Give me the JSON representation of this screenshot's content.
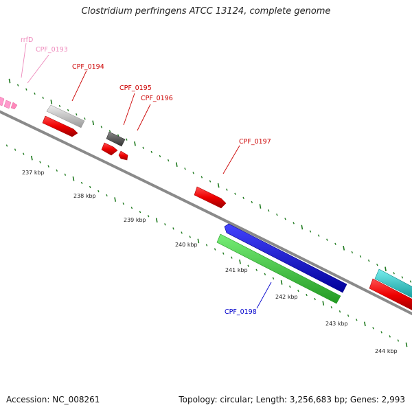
{
  "title": "Clostridium perfringens ATCC 13124, complete genome",
  "footer": {
    "accession": "Accession: NC_008261",
    "summary": "Topology: circular; Length: 3,256,683 bp; Genes: 2,993"
  },
  "scale_labels": [
    "237 kbp",
    "238 kbp",
    "239 kbp",
    "240 kbp",
    "241 kbp",
    "242 kbp",
    "243 kbp",
    "244 kbp"
  ],
  "gene_labels": {
    "rrfD": "rrfD",
    "cpf0193": "CPF_0193",
    "cpf0194": "CPF_0194",
    "cpf0195": "CPF_0195",
    "cpf0196": "CPF_0196",
    "cpf0197": "CPF_0197",
    "cpf0198": "CPF_0198"
  },
  "colors": {
    "backbone": "#888888",
    "ticks": "#1f7a1f",
    "red_gene": "#ee0000",
    "grey_gene": "#c0c0c0",
    "dark_gene": "#555555",
    "blue_gene": "#0000dd",
    "green_gene": "#33cc33",
    "cyan_gene": "#22cccc",
    "pink_gene": "#ff99cc",
    "red_label": "#cc0000",
    "pink_label": "#ee88bb",
    "blue_label": "#0000cc"
  }
}
